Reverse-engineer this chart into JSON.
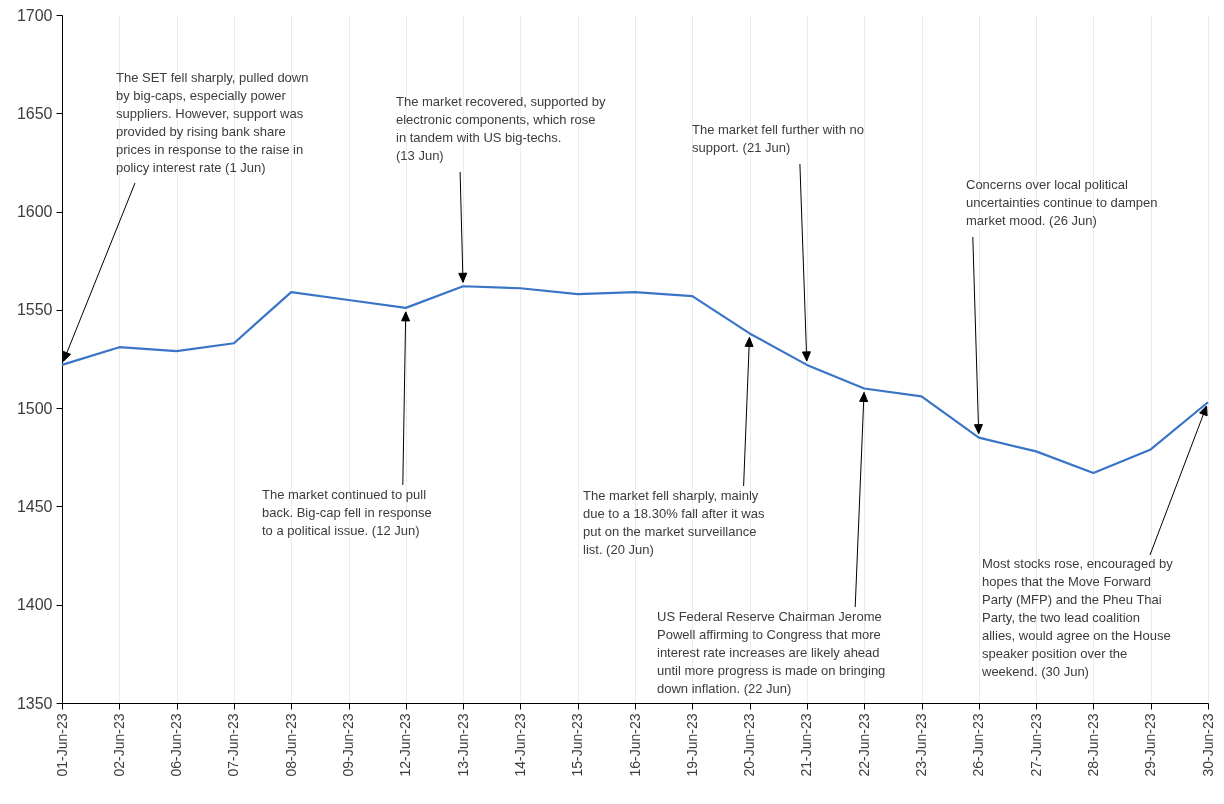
{
  "chart_data": {
    "type": "line",
    "categories": [
      "01-Jun-23",
      "02-Jun-23",
      "06-Jun-23",
      "07-Jun-23",
      "08-Jun-23",
      "09-Jun-23",
      "12-Jun-23",
      "13-Jun-23",
      "14-Jun-23",
      "15-Jun-23",
      "16-Jun-23",
      "19-Jun-23",
      "20-Jun-23",
      "21-Jun-23",
      "22-Jun-23",
      "23-Jun-23",
      "26-Jun-23",
      "27-Jun-23",
      "28-Jun-23",
      "29-Jun-23",
      "30-Jun-23"
    ],
    "series": [
      {
        "color": "#3a74c6",
        "values": [
          1522,
          1531,
          1529,
          1533,
          1559,
          1555,
          1551,
          1562,
          1561,
          1558,
          1559,
          1557,
          1538,
          1522,
          1510,
          1506,
          1485,
          1478,
          1467,
          1479,
          1503
        ]
      }
    ],
    "ylim": [
      1350,
      1700
    ],
    "yticks": [
      1350,
      1400,
      1450,
      1500,
      1550,
      1600,
      1650,
      1700
    ],
    "grid": "x",
    "annotations": [
      {
        "text": "The SET fell sharply, pulled down by big-caps, especially power suppliers. However, support was provided by rising bank share prices in response to the raise in policy interest rate (1 Jun)",
        "x": "01-Jun-23",
        "y": 1522
      },
      {
        "text": "The market continued to pull back. Big-cap fell in response to a political issue. (12 Jun)",
        "x": "12-Jun-23",
        "y": 1551
      },
      {
        "text": "The market recovered, supported by electronic components, which rose in tandem with US big-techs. (13 Jun)",
        "x": "13-Jun-23",
        "y": 1562
      },
      {
        "text": "The market fell sharply, mainly due to a 18.30% fall after it was put on the market surveillance list. (20 Jun)",
        "x": "20-Jun-23",
        "y": 1538
      },
      {
        "text": "The market fell further with no support. (21 Jun)",
        "x": "21-Jun-23",
        "y": 1522
      },
      {
        "text": "US Federal Reserve Chairman Jerome Powell affirming to Congress that more interest rate increases are likely ahead until more progress is made on bringing down inflation. (22 Jun)",
        "x": "22-Jun-23",
        "y": 1510
      },
      {
        "text": "Concerns over local political uncertainties continue to dampen market mood. (26 Jun)",
        "x": "26-Jun-23",
        "y": 1485
      },
      {
        "text": "Most stocks rose, encouraged by hopes that the Move Forward Party (MFP) and the Pheu Thai Party, the two lead coalition allies, would agree on the House speaker position over the weekend. (30 Jun)",
        "x": "30-Jun-23",
        "y": 1503
      }
    ]
  }
}
